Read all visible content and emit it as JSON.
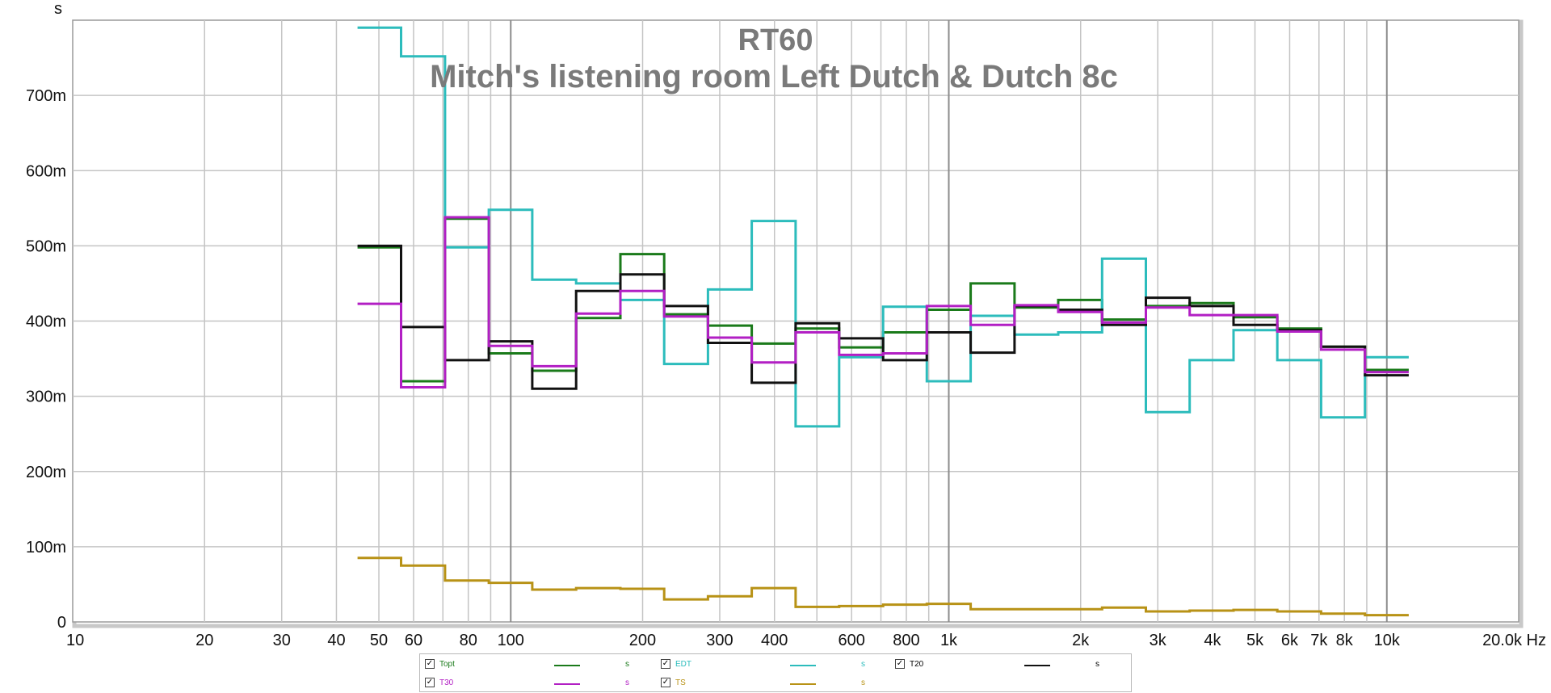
{
  "chart_data": {
    "type": "line",
    "title": "RT60",
    "subtitle": "Mitch's listening room Left Dutch & Dutch 8c",
    "ylabel": "s",
    "xlabel": "Hz",
    "x_scale": "log",
    "xlim": [
      10,
      20000
    ],
    "ylim": [
      0,
      0.8
    ],
    "grid": true,
    "legend_position": "bottom",
    "x_ticks": [
      {
        "value": 10,
        "label": "10"
      },
      {
        "value": 20,
        "label": "20"
      },
      {
        "value": 30,
        "label": "30"
      },
      {
        "value": 40,
        "label": "40"
      },
      {
        "value": 50,
        "label": "50"
      },
      {
        "value": 60,
        "label": "60"
      },
      {
        "value": 80,
        "label": "80"
      },
      {
        "value": 100,
        "label": "100"
      },
      {
        "value": 200,
        "label": "200"
      },
      {
        "value": 300,
        "label": "300"
      },
      {
        "value": 400,
        "label": "400"
      },
      {
        "value": 600,
        "label": "600"
      },
      {
        "value": 800,
        "label": "800"
      },
      {
        "value": 1000,
        "label": "1k"
      },
      {
        "value": 2000,
        "label": "2k"
      },
      {
        "value": 3000,
        "label": "3k"
      },
      {
        "value": 4000,
        "label": "4k"
      },
      {
        "value": 5000,
        "label": "5k"
      },
      {
        "value": 6000,
        "label": "6k"
      },
      {
        "value": 7000,
        "label": "7k"
      },
      {
        "value": 8000,
        "label": "8k"
      },
      {
        "value": 10000,
        "label": "10k"
      },
      {
        "value": 20000,
        "label": "20.0k Hz"
      }
    ],
    "y_ticks": [
      {
        "value": 0,
        "label": "0"
      },
      {
        "value": 0.1,
        "label": "100m"
      },
      {
        "value": 0.2,
        "label": "200m"
      },
      {
        "value": 0.3,
        "label": "300m"
      },
      {
        "value": 0.4,
        "label": "400m"
      },
      {
        "value": 0.5,
        "label": "500m"
      },
      {
        "value": 0.6,
        "label": "600m"
      },
      {
        "value": 0.7,
        "label": "700m"
      }
    ],
    "band_edges_hz": [
      44.7,
      56.2,
      70.8,
      89.1,
      112,
      141,
      178,
      224,
      282,
      355,
      447,
      562,
      708,
      891,
      1122,
      1413,
      1778,
      2239,
      2818,
      3548,
      4467,
      5623,
      7079,
      8913,
      11220
    ],
    "series": [
      {
        "name": "Topt",
        "unit": "s",
        "color": "#1a7a1a",
        "values": [
          0.498,
          0.32,
          0.536,
          0.357,
          0.334,
          0.404,
          0.489,
          0.409,
          0.394,
          0.37,
          0.39,
          0.365,
          0.385,
          0.415,
          0.45,
          0.418,
          0.428,
          0.402,
          0.42,
          0.424,
          0.405,
          0.39,
          0.366,
          0.335
        ]
      },
      {
        "name": "EDT",
        "unit": "s",
        "color": "#2cbcbc",
        "values": [
          0.79,
          0.752,
          0.498,
          0.548,
          0.455,
          0.45,
          0.428,
          0.343,
          0.442,
          0.533,
          0.26,
          0.352,
          0.419,
          0.32,
          0.407,
          0.382,
          0.385,
          0.483,
          0.279,
          0.348,
          0.388,
          0.348,
          0.272,
          0.352
        ]
      },
      {
        "name": "T20",
        "unit": "s",
        "color": "#111111",
        "values": [
          0.5,
          0.392,
          0.348,
          0.373,
          0.31,
          0.44,
          0.462,
          0.42,
          0.371,
          0.318,
          0.397,
          0.377,
          0.348,
          0.385,
          0.358,
          0.42,
          0.415,
          0.395,
          0.431,
          0.42,
          0.395,
          0.388,
          0.366,
          0.328
        ]
      },
      {
        "name": "T30",
        "unit": "s",
        "color": "#b21fc4",
        "values": [
          0.423,
          0.312,
          0.538,
          0.367,
          0.34,
          0.41,
          0.44,
          0.406,
          0.378,
          0.345,
          0.385,
          0.355,
          0.357,
          0.42,
          0.395,
          0.421,
          0.412,
          0.398,
          0.418,
          0.408,
          0.408,
          0.386,
          0.362,
          0.332
        ]
      },
      {
        "name": "TS",
        "unit": "s",
        "color": "#b89216",
        "values": [
          0.085,
          0.075,
          0.055,
          0.052,
          0.043,
          0.045,
          0.044,
          0.03,
          0.034,
          0.045,
          0.02,
          0.021,
          0.023,
          0.024,
          0.017,
          0.017,
          0.017,
          0.019,
          0.014,
          0.015,
          0.016,
          0.014,
          0.011,
          0.009
        ]
      }
    ]
  },
  "legend": {
    "items": [
      {
        "name": "Topt",
        "unit": "s",
        "checked": true,
        "color": "#1a7a1a"
      },
      {
        "name": "EDT",
        "unit": "s",
        "checked": true,
        "color": "#2cbcbc"
      },
      {
        "name": "T20",
        "unit": "s",
        "checked": true,
        "color": "#111111"
      },
      {
        "name": "T30",
        "unit": "s",
        "checked": true,
        "color": "#b21fc4"
      },
      {
        "name": "TS",
        "unit": "s",
        "checked": true,
        "color": "#b89216"
      }
    ],
    "check_glyph": "✓"
  }
}
